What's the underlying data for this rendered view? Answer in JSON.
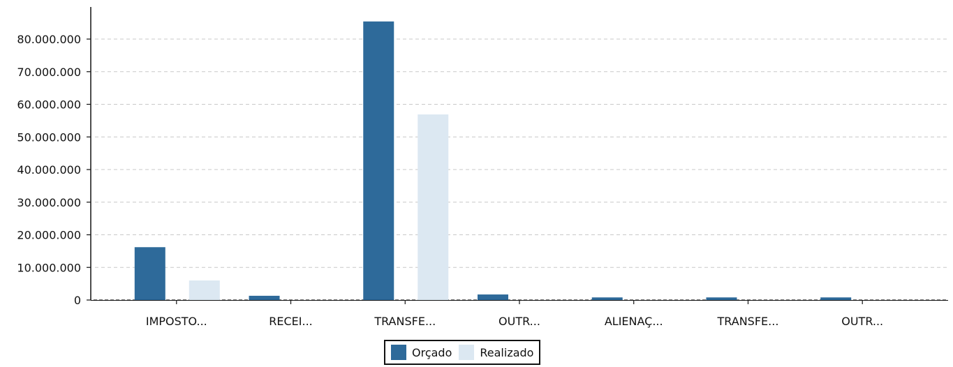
{
  "chart_data": {
    "type": "bar",
    "categories": [
      "IMPOSTO...",
      "RECEI...",
      "TRANSFE...",
      "OUTR...",
      "ALIENAÇ...",
      "TRANSFE...",
      "OUTR..."
    ],
    "series": [
      {
        "name": "Orçado",
        "color": "#2e6a9a",
        "values": [
          16200000,
          1300000,
          85400000,
          1700000,
          800000,
          800000,
          800000
        ]
      },
      {
        "name": "Realizado",
        "color": "#dce8f2",
        "values": [
          6000000,
          0,
          56900000,
          0,
          0,
          0,
          0
        ]
      }
    ],
    "yticks": [
      0,
      10000000,
      20000000,
      30000000,
      40000000,
      50000000,
      60000000,
      70000000,
      80000000
    ],
    "ytick_labels": [
      "0",
      "10.000.000",
      "20.000.000",
      "30.000.000",
      "40.000.000",
      "50.000.000",
      "60.000.000",
      "70.000.000",
      "80.000.000"
    ],
    "ylim": [
      0,
      90000000
    ],
    "grid": true,
    "legend_position": "bottom-center",
    "title": "",
    "xlabel": "",
    "ylabel": ""
  }
}
